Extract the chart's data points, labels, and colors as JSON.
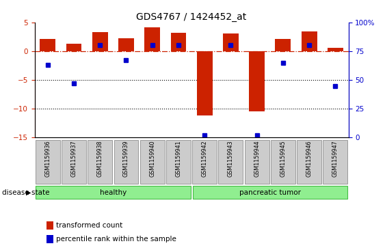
{
  "title": "GDS4767 / 1424452_at",
  "samples": [
    "GSM1159936",
    "GSM1159937",
    "GSM1159938",
    "GSM1159939",
    "GSM1159940",
    "GSM1159941",
    "GSM1159942",
    "GSM1159943",
    "GSM1159944",
    "GSM1159945",
    "GSM1159946",
    "GSM1159947"
  ],
  "transformed_count": [
    2.1,
    1.3,
    3.3,
    2.2,
    4.1,
    3.2,
    -11.2,
    3.1,
    -10.5,
    2.1,
    3.4,
    0.6
  ],
  "percentile_rank": [
    63,
    47,
    80,
    67,
    80,
    80,
    2,
    80,
    2,
    65,
    80,
    45
  ],
  "ylim_left": [
    -15,
    5
  ],
  "ylim_right": [
    0,
    100
  ],
  "yticks_left": [
    -15,
    -10,
    -5,
    0,
    5
  ],
  "yticks_right": [
    0,
    25,
    50,
    75,
    100
  ],
  "bar_color": "#CC2200",
  "dot_color": "#0000CC",
  "zero_line_color": "#CC2200",
  "background_color": "white",
  "legend_labels": [
    "transformed count",
    "percentile rank within the sample"
  ],
  "disease_state_label": "disease state",
  "group_healthy_label": "healthy",
  "group_tumor_label": "pancreatic tumor",
  "group_color": "#90EE90",
  "group_edge_color": "#44BB44",
  "box_face_color": "#CCCCCC",
  "box_edge_color": "#999999",
  "title_fontsize": 10
}
